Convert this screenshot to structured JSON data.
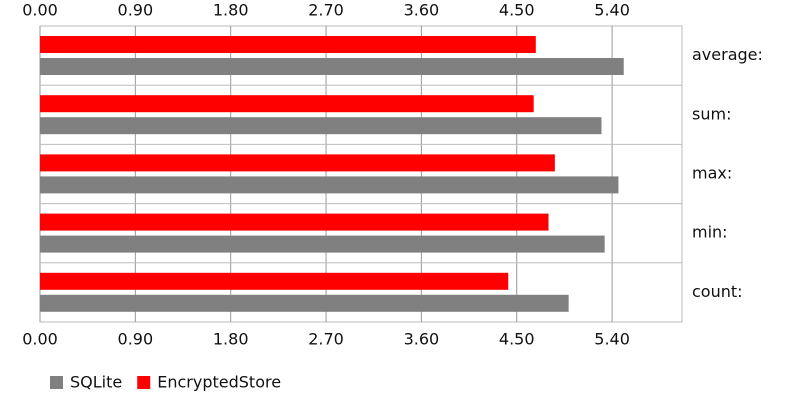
{
  "chart_data": {
    "type": "hbar",
    "categories": [
      "average:",
      "sum:",
      "max:",
      "min:",
      "count:"
    ],
    "series": [
      {
        "name": "SQLite",
        "color": "#808080",
        "values": [
          5.51,
          5.3,
          5.46,
          5.33,
          4.99
        ]
      },
      {
        "name": "EncryptedStore",
        "color": "#ff0000",
        "values": [
          4.68,
          4.66,
          4.86,
          4.8,
          4.42
        ]
      }
    ],
    "xlim": [
      0,
      6.06
    ],
    "xticks": [
      {
        "value": 0,
        "label": "0.00"
      },
      {
        "value": 0.9,
        "label": "0.90"
      },
      {
        "value": 1.8,
        "label": "1.80"
      },
      {
        "value": 2.7,
        "label": "2.70"
      },
      {
        "value": 3.6,
        "label": "3.60"
      },
      {
        "value": 4.5,
        "label": "4.50"
      },
      {
        "value": 5.4,
        "label": "5.40"
      }
    ],
    "grid": true,
    "legend": "bottom-left"
  }
}
